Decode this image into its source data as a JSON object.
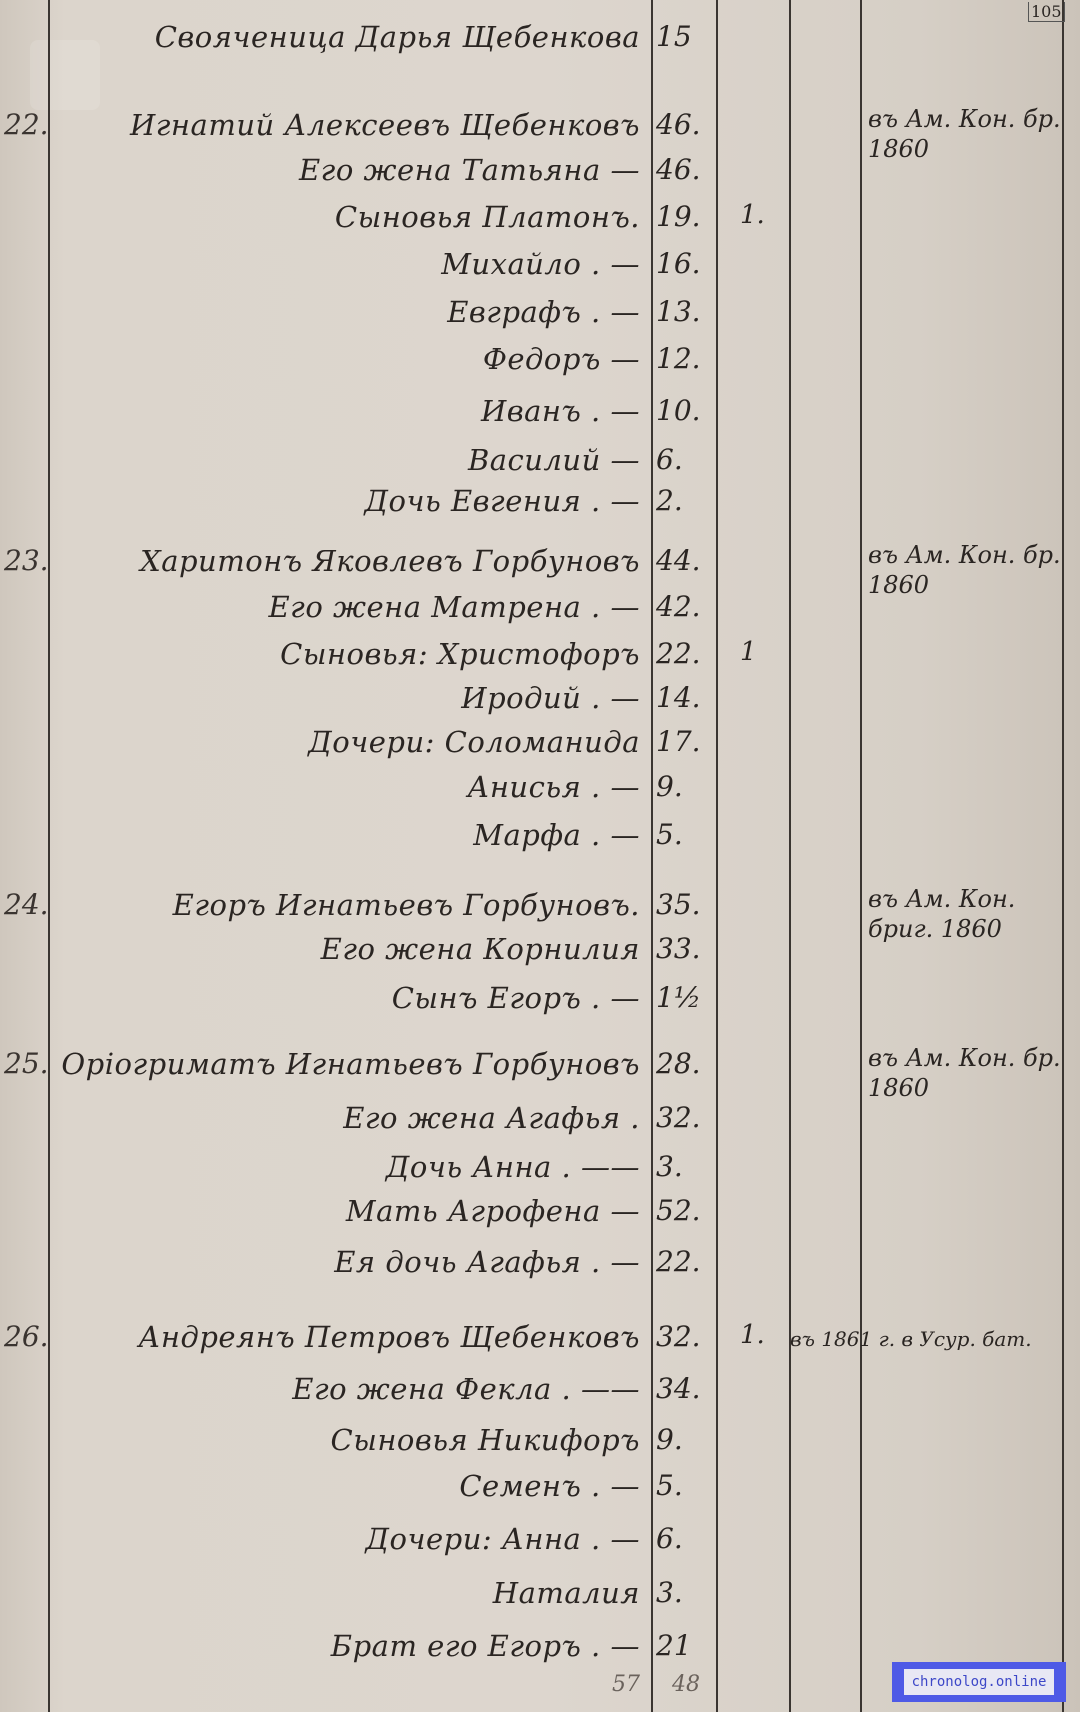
{
  "page_number": "105",
  "header_line": {
    "name": "Свояченица Дарья Щебенкова",
    "age": "15"
  },
  "families": [
    {
      "number": "22.",
      "members": [
        {
          "name": "Игнатий Алексеевъ Щебенковъ",
          "age": "46.",
          "note": "въ Ам. Кон. бр. 1860"
        },
        {
          "name": "Его жена Татьяна —",
          "age": "46."
        },
        {
          "name": "Сыновья Платонъ.",
          "age": "19.",
          "col3": "1."
        },
        {
          "name": "Михайло . —",
          "age": "16."
        },
        {
          "name": "Евграфъ . —",
          "age": "13."
        },
        {
          "name": "Федоръ —",
          "age": "12."
        },
        {
          "name": "Иванъ . —",
          "age": "10."
        },
        {
          "name": "Василий —",
          "age": "6."
        },
        {
          "name": "Дочь Евгения . —",
          "age": "2."
        }
      ]
    },
    {
      "number": "23.",
      "members": [
        {
          "name": "Харитонъ Яковлевъ Горбуновъ",
          "age": "44.",
          "note": "въ Ам. Кон. бр. 1860"
        },
        {
          "name": "Его жена Матрена . —",
          "age": "42."
        },
        {
          "name": "Сыновья: Христофоръ",
          "age": "22.",
          "col3": "1"
        },
        {
          "name": "Иродий . —",
          "age": "14."
        },
        {
          "name": "Дочери: Соломанида",
          "age": "17."
        },
        {
          "name": "Анисья . —",
          "age": "9."
        },
        {
          "name": "Марфа . —",
          "age": "5."
        }
      ]
    },
    {
      "number": "24.",
      "members": [
        {
          "name": "Егоръ Игнатьевъ Горбуновъ.",
          "age": "35.",
          "note": "въ Ам. Кон. бриг. 1860"
        },
        {
          "name": "Его жена Корнилия",
          "age": "33."
        },
        {
          "name": "Сынъ Егоръ . —",
          "age": "1½"
        }
      ]
    },
    {
      "number": "25.",
      "members": [
        {
          "name": "Оріогриматъ Игнатьевъ Горбуновъ",
          "age": "28.",
          "note": "въ Ам. Кон. бр. 1860"
        },
        {
          "name": "Его жена Агафья .",
          "age": "32."
        },
        {
          "name": "Дочь Анна . ——",
          "age": "3."
        },
        {
          "name": "Мать Агрофена —",
          "age": "52."
        },
        {
          "name": "Ея дочь Агафья . —",
          "age": "22."
        }
      ]
    },
    {
      "number": "26.",
      "members": [
        {
          "name": "Андреянъ Петровъ Щебенковъ",
          "age": "32.",
          "col3": "1.",
          "note_wide": "въ 1861 г. в Усур. бат."
        },
        {
          "name": "Его жена Фекла . ——",
          "age": "34."
        },
        {
          "name": "Сыновья Никифоръ",
          "age": "9."
        },
        {
          "name": "Семенъ . —",
          "age": "5."
        },
        {
          "name": "Дочери: Анна . —",
          "age": "6."
        },
        {
          "name": "Наталия",
          "age": "3."
        },
        {
          "name": "Брат его Егоръ . —",
          "age": "21"
        }
      ]
    }
  ],
  "footer_totals": [
    "57",
    "48"
  ],
  "watermark": "chronolog.online"
}
